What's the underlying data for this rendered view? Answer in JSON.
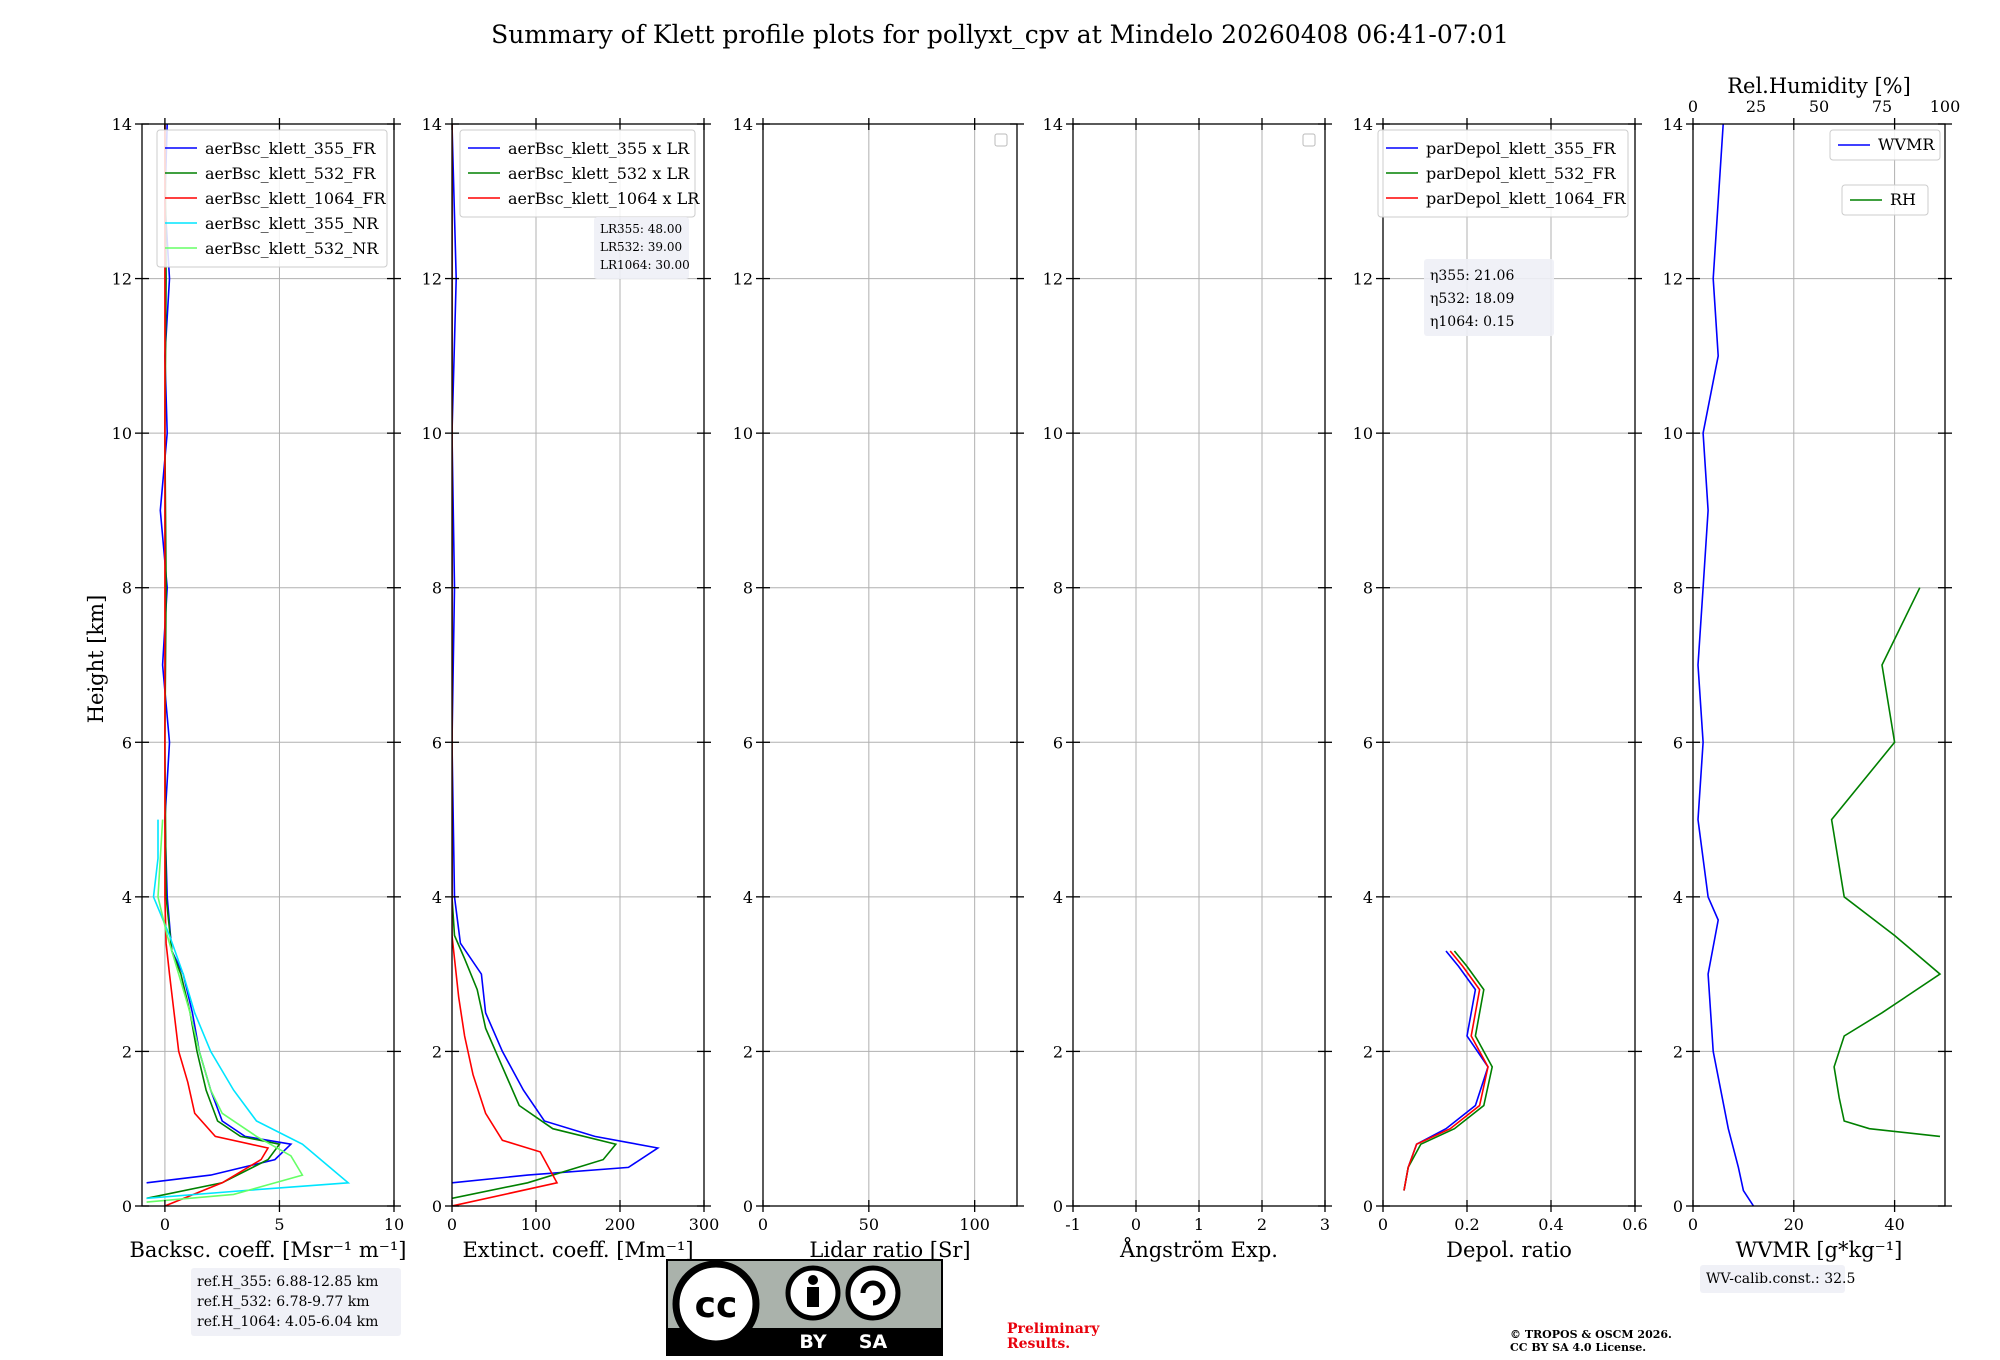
{
  "chart_data": {
    "type": "line",
    "title": "Summary of Klett profile plots for pollyxt_cpv at Mindelo 20260408 06:41-07:01",
    "ylabel": "Height [km]",
    "ylim": [
      0,
      14
    ],
    "y_ticks": [
      0,
      2,
      4,
      6,
      8,
      10,
      12,
      14
    ],
    "panels": [
      {
        "id": "backscatter",
        "xlabel": "Backsc. coeff. [Msr⁻¹ m⁻¹]",
        "xlim": [
          -1,
          10
        ],
        "x_ticks": [
          0,
          5,
          10
        ],
        "legend": "top-right",
        "series": [
          {
            "name": "aerBsc_klett_355_FR",
            "color": "#0000ff",
            "points": [
              [
                -0.8,
                0.3
              ],
              [
                2,
                0.4
              ],
              [
                4.8,
                0.6
              ],
              [
                5.5,
                0.8
              ],
              [
                3.5,
                0.9
              ],
              [
                2.5,
                1.1
              ],
              [
                2,
                1.5
              ],
              [
                1.5,
                2
              ],
              [
                1.2,
                2.5
              ],
              [
                0.8,
                3
              ],
              [
                0.3,
                3.3
              ],
              [
                0.1,
                4
              ],
              [
                0,
                5
              ],
              [
                0.2,
                6
              ],
              [
                -0.1,
                7
              ],
              [
                0.1,
                8
              ],
              [
                -0.2,
                9
              ],
              [
                0.1,
                10
              ],
              [
                0,
                11
              ],
              [
                0.2,
                12
              ],
              [
                0,
                13
              ],
              [
                0.1,
                14
              ]
            ]
          },
          {
            "name": "aerBsc_klett_532_FR",
            "color": "#008000",
            "points": [
              [
                -0.8,
                0.1
              ],
              [
                2.5,
                0.3
              ],
              [
                4.5,
                0.6
              ],
              [
                5,
                0.8
              ],
              [
                3.3,
                0.9
              ],
              [
                2.3,
                1.1
              ],
              [
                1.8,
                1.5
              ],
              [
                1.4,
                2
              ],
              [
                1.1,
                2.5
              ],
              [
                0.7,
                3
              ],
              [
                0.3,
                3.3
              ],
              [
                0.05,
                4
              ],
              [
                0,
                6
              ],
              [
                0.05,
                8
              ],
              [
                0,
                10
              ],
              [
                0.05,
                12
              ],
              [
                0,
                14
              ]
            ]
          },
          {
            "name": "aerBsc_klett_1064_FR",
            "color": "#ff0000",
            "points": [
              [
                0,
                0
              ],
              [
                2.5,
                0.3
              ],
              [
                4.2,
                0.6
              ],
              [
                4.5,
                0.75
              ],
              [
                2.2,
                0.9
              ],
              [
                1.3,
                1.2
              ],
              [
                1,
                1.6
              ],
              [
                0.6,
                2
              ],
              [
                0.4,
                2.5
              ],
              [
                0.2,
                3
              ],
              [
                0.05,
                3.4
              ],
              [
                0,
                4
              ],
              [
                0,
                14
              ]
            ]
          },
          {
            "name": "aerBsc_klett_355_NR",
            "color": "#00e5ff",
            "points": [
              [
                -0.8,
                0.1
              ],
              [
                3.5,
                0.2
              ],
              [
                8,
                0.3
              ],
              [
                7,
                0.55
              ],
              [
                6,
                0.8
              ],
              [
                4,
                1.1
              ],
              [
                3,
                1.5
              ],
              [
                2,
                2
              ],
              [
                1.3,
                2.5
              ],
              [
                0.8,
                3
              ],
              [
                0.2,
                3.5
              ],
              [
                -0.5,
                4
              ],
              [
                -0.3,
                4.5
              ],
              [
                -0.3,
                5
              ]
            ]
          },
          {
            "name": "aerBsc_klett_532_NR",
            "color": "#66ff66",
            "points": [
              [
                -0.8,
                0.05
              ],
              [
                3,
                0.15
              ],
              [
                6,
                0.4
              ],
              [
                5.5,
                0.65
              ],
              [
                4,
                0.9
              ],
              [
                2.5,
                1.2
              ],
              [
                2,
                1.5
              ],
              [
                1.5,
                2
              ],
              [
                1.1,
                2.5
              ],
              [
                0.6,
                3
              ],
              [
                0.1,
                3.5
              ],
              [
                -0.3,
                4
              ],
              [
                -0.2,
                4.5
              ],
              [
                -0.1,
                5
              ]
            ]
          }
        ],
        "annotation": [
          "ref.H_355: 6.88-12.85 km",
          "ref.H_532: 6.78-9.77 km",
          "ref.H_1064: 4.05-6.04 km"
        ]
      },
      {
        "id": "extinction",
        "xlabel": "Extinct. coeff. [Mm⁻¹]",
        "xlim": [
          0,
          300
        ],
        "x_ticks": [
          0,
          100,
          200,
          300
        ],
        "legend": "top-right",
        "series": [
          {
            "name": "aerBsc_klett_355 x LR",
            "color": "#0000ff",
            "points": [
              [
                0,
                0.3
              ],
              [
                90,
                0.4
              ],
              [
                210,
                0.5
              ],
              [
                245,
                0.75
              ],
              [
                170,
                0.9
              ],
              [
                110,
                1.1
              ],
              [
                85,
                1.5
              ],
              [
                60,
                2
              ],
              [
                40,
                2.5
              ],
              [
                35,
                3
              ],
              [
                10,
                3.4
              ],
              [
                3,
                4
              ],
              [
                0,
                6
              ],
              [
                3,
                8
              ],
              [
                0,
                10
              ],
              [
                5,
                12
              ],
              [
                0,
                14
              ]
            ]
          },
          {
            "name": "aerBsc_klett_532 x LR",
            "color": "#008000",
            "points": [
              [
                0,
                0.1
              ],
              [
                90,
                0.3
              ],
              [
                180,
                0.6
              ],
              [
                195,
                0.8
              ],
              [
                120,
                1
              ],
              [
                80,
                1.3
              ],
              [
                60,
                1.8
              ],
              [
                40,
                2.3
              ],
              [
                30,
                2.8
              ],
              [
                15,
                3.2
              ],
              [
                3,
                3.5
              ],
              [
                0,
                4
              ],
              [
                0,
                14
              ]
            ]
          },
          {
            "name": "aerBsc_klett_1064 x LR",
            "color": "#ff0000",
            "points": [
              [
                0,
                0
              ],
              [
                125,
                0.3
              ],
              [
                105,
                0.7
              ],
              [
                60,
                0.85
              ],
              [
                40,
                1.2
              ],
              [
                25,
                1.7
              ],
              [
                15,
                2.2
              ],
              [
                8,
                2.7
              ],
              [
                3,
                3.2
              ],
              [
                0,
                3.5
              ],
              [
                0,
                14
              ]
            ]
          }
        ],
        "annotation": [
          "LR355: 48.00",
          "LR532: 39.00",
          "LR1064: 30.00"
        ]
      },
      {
        "id": "lidar-ratio",
        "xlabel": "Lidar ratio [Sr]",
        "xlim": [
          0,
          120
        ],
        "x_ticks": [
          0,
          50,
          100
        ],
        "series": []
      },
      {
        "id": "angstrom",
        "xlabel": "Ångström Exp.",
        "xlim": [
          -1,
          3
        ],
        "x_ticks": [
          -1,
          0,
          1,
          2,
          3
        ],
        "series": []
      },
      {
        "id": "depol",
        "xlabel": "Depol. ratio",
        "xlim": [
          0,
          0.6
        ],
        "x_ticks": [
          0.0,
          0.2,
          0.4,
          0.6
        ],
        "legend": "top-left",
        "series": [
          {
            "name": "parDepol_klett_355_FR",
            "color": "#0000ff",
            "points": [
              [
                0.05,
                0.2
              ],
              [
                0.06,
                0.5
              ],
              [
                0.08,
                0.8
              ],
              [
                0.15,
                1
              ],
              [
                0.22,
                1.3
              ],
              [
                0.25,
                1.8
              ],
              [
                0.2,
                2.2
              ],
              [
                0.22,
                2.8
              ],
              [
                0.18,
                3.1
              ],
              [
                0.15,
                3.3
              ]
            ]
          },
          {
            "name": "parDepol_klett_532_FR",
            "color": "#008000",
            "points": [
              [
                0.05,
                0.2
              ],
              [
                0.06,
                0.5
              ],
              [
                0.09,
                0.8
              ],
              [
                0.17,
                1
              ],
              [
                0.24,
                1.3
              ],
              [
                0.26,
                1.8
              ],
              [
                0.22,
                2.2
              ],
              [
                0.24,
                2.8
              ],
              [
                0.2,
                3.1
              ],
              [
                0.17,
                3.3
              ]
            ]
          },
          {
            "name": "parDepol_klett_1064_FR",
            "color": "#ff0000",
            "points": [
              [
                0.05,
                0.2
              ],
              [
                0.06,
                0.5
              ],
              [
                0.08,
                0.8
              ],
              [
                0.16,
                1
              ],
              [
                0.23,
                1.3
              ],
              [
                0.25,
                1.8
              ],
              [
                0.21,
                2.2
              ],
              [
                0.23,
                2.8
              ],
              [
                0.19,
                3.1
              ],
              [
                0.16,
                3.3
              ]
            ]
          }
        ],
        "annotation": [
          "η355: 21.06",
          "η532: 18.09",
          "η1064: 0.15"
        ]
      },
      {
        "id": "wvmr",
        "xlabel": "WVMR [g*kg⁻¹]",
        "xlim": [
          0,
          50
        ],
        "x_ticks": [
          0,
          20,
          40
        ],
        "top_axis_label": "Rel.Humidity [%]",
        "top_xlim": [
          0,
          100
        ],
        "top_ticks": [
          0,
          25,
          50,
          75,
          100
        ],
        "legend": "top-right",
        "series": [
          {
            "name": "WVMR",
            "color": "#0000ff",
            "axis": "bottom",
            "points": [
              [
                12,
                0
              ],
              [
                10,
                0.2
              ],
              [
                9,
                0.5
              ],
              [
                7,
                1
              ],
              [
                4,
                2
              ],
              [
                3,
                3
              ],
              [
                5,
                3.7
              ],
              [
                3,
                4
              ],
              [
                1,
                5
              ],
              [
                2,
                6
              ],
              [
                1,
                7
              ],
              [
                2,
                8
              ],
              [
                3,
                9
              ],
              [
                2,
                10
              ],
              [
                5,
                11
              ],
              [
                4,
                12
              ],
              [
                5,
                13
              ],
              [
                6,
                14
              ]
            ]
          },
          {
            "name": "RH",
            "color": "#008000",
            "axis": "top",
            "points": [
              [
                98,
                0.9
              ],
              [
                70,
                1
              ],
              [
                60,
                1.1
              ],
              [
                58,
                1.4
              ],
              [
                56,
                1.8
              ],
              [
                60,
                2.2
              ],
              [
                75,
                2.5
              ],
              [
                98,
                3
              ],
              [
                80,
                3.5
              ],
              [
                60,
                4
              ],
              [
                55,
                5
              ],
              [
                80,
                6
              ],
              [
                75,
                7
              ],
              [
                90,
                8
              ]
            ]
          }
        ],
        "annotation": [
          "WV-calib.const.: 32.5"
        ]
      }
    ]
  },
  "badge": {
    "left": "BY",
    "right": "SA"
  },
  "preliminary": [
    "Preliminary",
    "Results."
  ],
  "copyright": [
    "© TROPOS & OSCM 2026.",
    "CC BY SA 4.0 License."
  ]
}
